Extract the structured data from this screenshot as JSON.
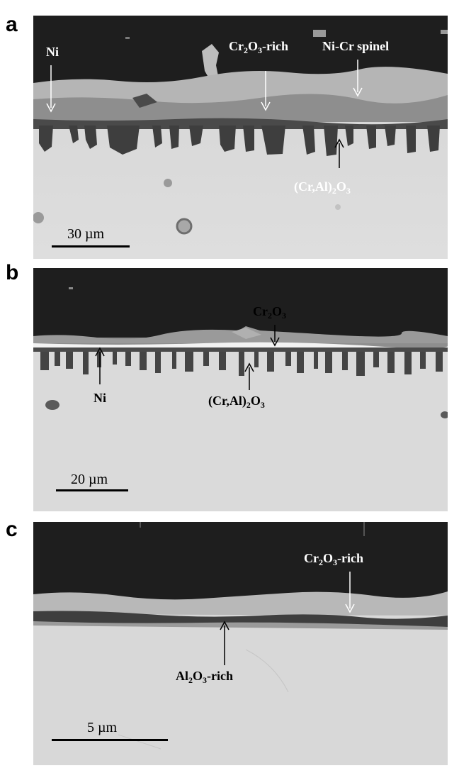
{
  "panels": {
    "a": {
      "letter": "a",
      "labels": {
        "ni": "Ni",
        "cr2o3_base": "Cr",
        "cr2o3_sub1": "2",
        "cr2o3_mid": "O",
        "cr2o3_sub2": "3",
        "cr2o3_tail": "-rich",
        "spinel": "Ni-Cr spinel",
        "cral_head": "(Cr,Al)",
        "cral_sub1": "2",
        "cral_mid": "O",
        "cral_sub2": "3"
      },
      "scale": "30 µm"
    },
    "b": {
      "letter": "b",
      "labels": {
        "cr2o3_base": "Cr",
        "cr2o3_sub1": "2",
        "cr2o3_mid": "O",
        "cr2o3_sub2": "3",
        "ni": "Ni",
        "cral_head": "(Cr,Al)",
        "cral_sub1": "2",
        "cral_mid": "O",
        "cral_sub2": "3"
      },
      "scale": "20 µm"
    },
    "c": {
      "letter": "c",
      "labels": {
        "cr2o3_base": "Cr",
        "cr2o3_sub1": "2",
        "cr2o3_mid": "O",
        "cr2o3_sub2": "3",
        "cr2o3_tail": "-rich",
        "al2o3_base": "Al",
        "al2o3_sub1": "2",
        "al2o3_mid": "O",
        "al2o3_sub2": "3",
        "al2o3_tail": "-rich"
      },
      "scale": "5 µm"
    }
  },
  "colors": {
    "background_dark": "#1e1e1e",
    "metal": "#d9d9d9",
    "oxide_light": "#b8b8b8",
    "oxide_mid": "#8c8c8c",
    "oxide_dark": "#3c3c3c"
  }
}
